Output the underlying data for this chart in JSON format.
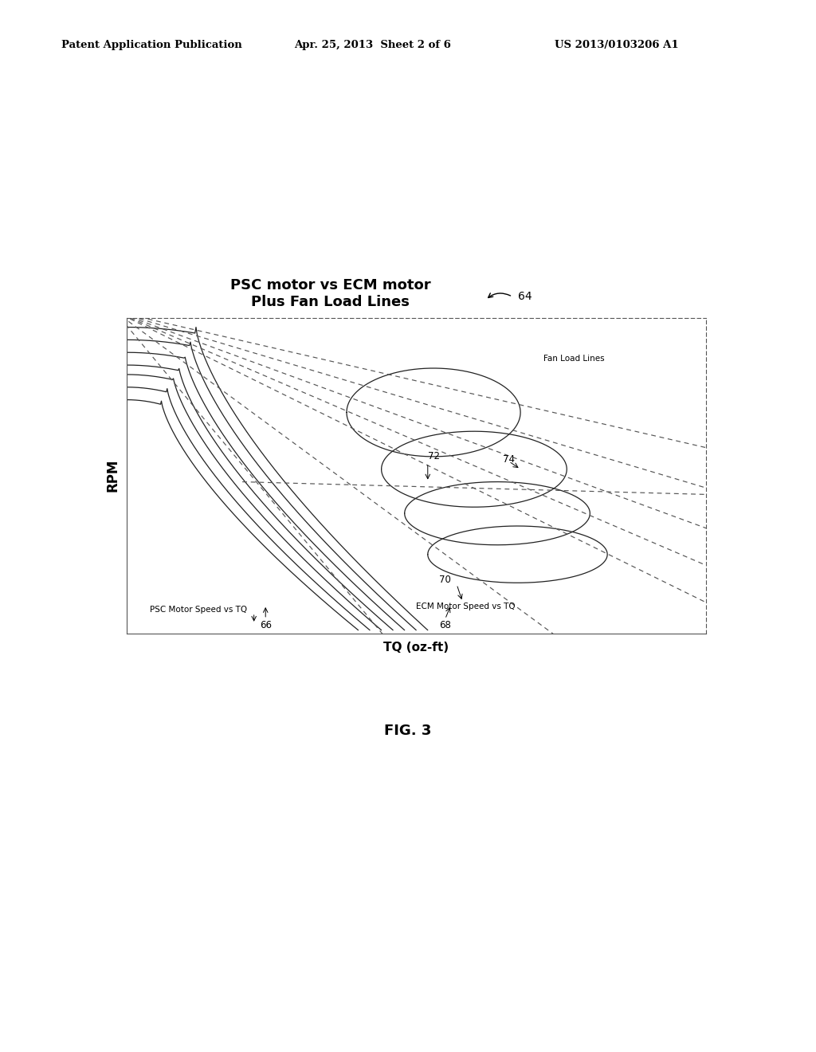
{
  "page_title_left": "Patent Application Publication",
  "page_title_mid": "Apr. 25, 2013  Sheet 2 of 6",
  "page_title_right": "US 2013/0103206 A1",
  "chart_title_line1": "PSC motor vs ECM motor",
  "chart_title_line2": "Plus Fan Load Lines",
  "xlabel": "TQ (oz-ft)",
  "ylabel": "RPM",
  "fig_label": "FIG. 3",
  "label_64": "64",
  "label_66": "66",
  "label_68": "68",
  "label_70": "70",
  "label_72": "72",
  "label_74": "74",
  "annotation_fan": "Fan Load Lines",
  "annotation_psc": "PSC Motor Speed vs TQ",
  "annotation_ecm": "ECM Motor Speed vs TQ",
  "bg_color": "#ffffff",
  "line_color": "#222222",
  "dashed_color": "#555555"
}
